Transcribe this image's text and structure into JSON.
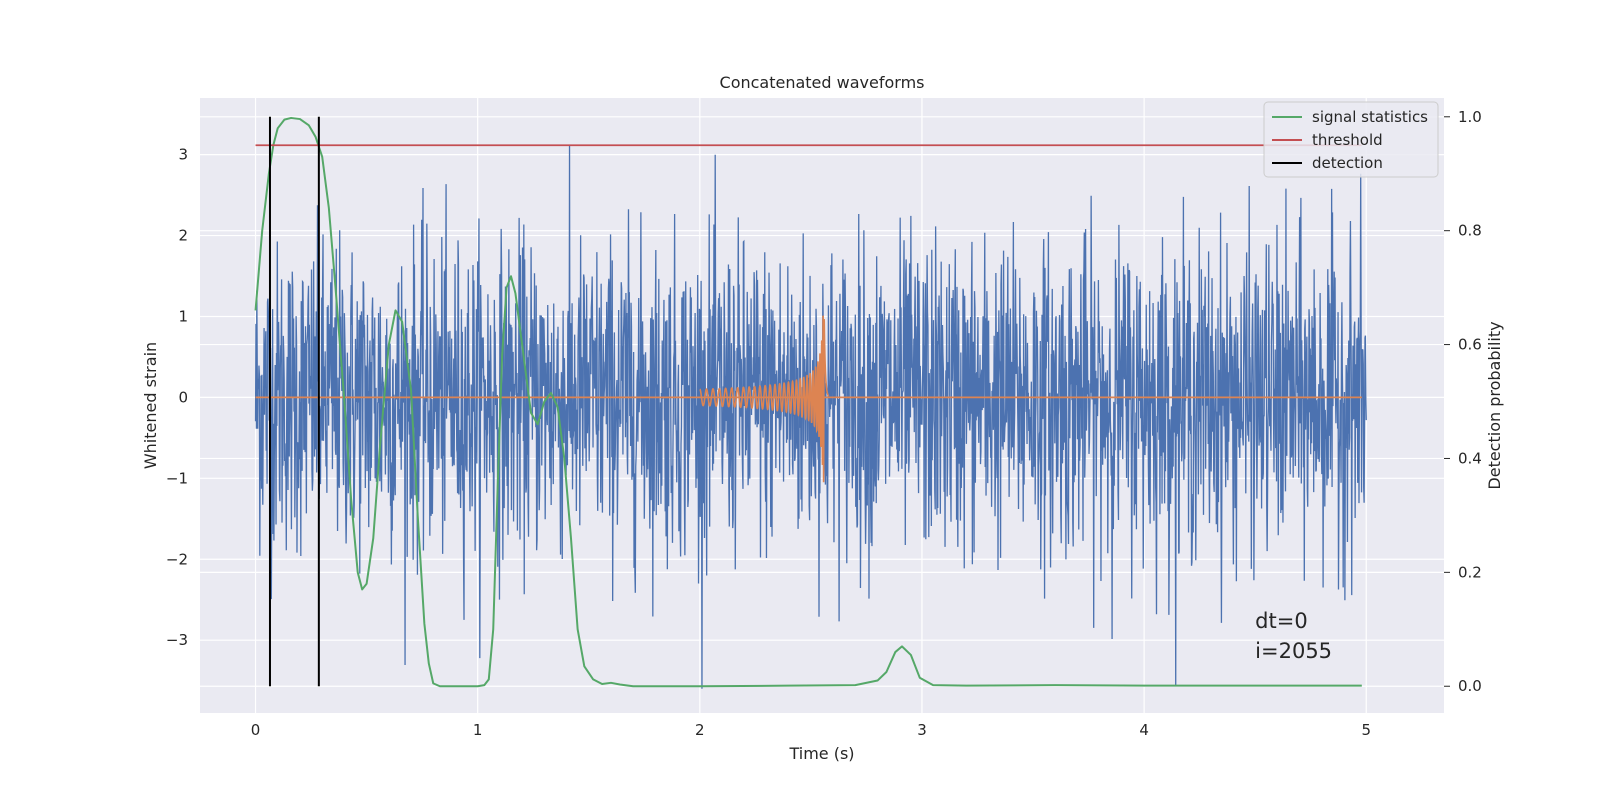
{
  "chart_data": {
    "type": "line",
    "title": "Concatenated waveforms",
    "xlabel": "Time (s)",
    "ylabel": "Whitened strain",
    "ylabel_right": "Detection probability",
    "xlim": [
      -0.25,
      5.35
    ],
    "ylim": [
      -3.9,
      3.7
    ],
    "ylim_right": [
      -0.047,
      1.033
    ],
    "x_ticks": [
      0,
      1,
      2,
      3,
      4,
      5
    ],
    "y_ticks": [
      -3,
      -2,
      -1,
      0,
      1,
      2,
      3
    ],
    "y_ticks_right": [
      0.0,
      0.2,
      0.4,
      0.6,
      0.8,
      1.0
    ],
    "x_tick_labels": [
      "0",
      "1",
      "2",
      "3",
      "4",
      "5"
    ],
    "y_tick_labels": [
      "−3",
      "−2",
      "−1",
      "0",
      "1",
      "2",
      "3"
    ],
    "y_tick_labels_right": [
      "0.0",
      "0.2",
      "0.4",
      "0.6",
      "0.8",
      "1.0"
    ],
    "grid": true,
    "legend_placement": "upper-right",
    "colors": {
      "strain": "#4c72b0",
      "injection": "#dd8452",
      "signal_statistics": "#55a868",
      "threshold": "#c44e52",
      "detection": "#000000",
      "background": "#eaeaf2",
      "grid": "#ffffff"
    },
    "series": [
      {
        "name": "",
        "kind": "whitened-strain-noise",
        "axis": "left",
        "x_range": [
          0,
          5
        ],
        "typical_amplitude": 1.0,
        "peak_max": 3.4,
        "peak_min": -3.6
      },
      {
        "name": "",
        "kind": "injected-chirp",
        "axis": "left",
        "x_range": [
          2.0,
          2.58
        ],
        "merger_time": 2.56,
        "peak_amplitude": 1.05,
        "peak_min": -1.25,
        "baseline": 0
      },
      {
        "name": "signal statistics",
        "axis": "right",
        "x": [
          0.0,
          0.03,
          0.06,
          0.08,
          0.1,
          0.13,
          0.16,
          0.2,
          0.24,
          0.27,
          0.3,
          0.33,
          0.36,
          0.4,
          0.43,
          0.46,
          0.48,
          0.5,
          0.53,
          0.56,
          0.6,
          0.63,
          0.66,
          0.7,
          0.73,
          0.76,
          0.78,
          0.8,
          0.83,
          0.87,
          0.9,
          0.95,
          1.0,
          1.03,
          1.05,
          1.07,
          1.09,
          1.11,
          1.13,
          1.15,
          1.17,
          1.2,
          1.24,
          1.27,
          1.3,
          1.33,
          1.36,
          1.39,
          1.42,
          1.45,
          1.48,
          1.52,
          1.56,
          1.6,
          1.64,
          1.7,
          1.8,
          2.0,
          2.4,
          2.7,
          2.8,
          2.84,
          2.88,
          2.91,
          2.95,
          2.99,
          3.05,
          3.2,
          3.6,
          4.0,
          4.5,
          4.98
        ],
        "values": [
          0.66,
          0.8,
          0.9,
          0.95,
          0.98,
          0.995,
          0.998,
          0.996,
          0.985,
          0.965,
          0.93,
          0.84,
          0.7,
          0.5,
          0.33,
          0.2,
          0.17,
          0.18,
          0.26,
          0.42,
          0.6,
          0.66,
          0.64,
          0.52,
          0.3,
          0.11,
          0.04,
          0.005,
          0.0,
          0.0,
          0.0,
          0.0,
          0.0,
          0.002,
          0.012,
          0.1,
          0.35,
          0.58,
          0.7,
          0.72,
          0.69,
          0.6,
          0.48,
          0.46,
          0.5,
          0.515,
          0.49,
          0.4,
          0.26,
          0.1,
          0.035,
          0.012,
          0.004,
          0.006,
          0.003,
          0.0,
          0.0,
          0.0,
          0.001,
          0.002,
          0.01,
          0.025,
          0.06,
          0.07,
          0.055,
          0.015,
          0.002,
          0.001,
          0.002,
          0.001,
          0.001,
          0.001
        ]
      },
      {
        "name": "threshold",
        "axis": "right",
        "x": [
          0.0,
          4.98
        ],
        "values": [
          0.95,
          0.95
        ]
      },
      {
        "name": "detection",
        "axis": "right",
        "kind": "vertical-lines",
        "x": [
          0.065,
          0.285
        ],
        "y_range": [
          0.0,
          1.0
        ]
      }
    ],
    "annotation": {
      "line1": "dt=0",
      "line2": "i=2055",
      "x": 4.5,
      "y": -2.9
    }
  }
}
